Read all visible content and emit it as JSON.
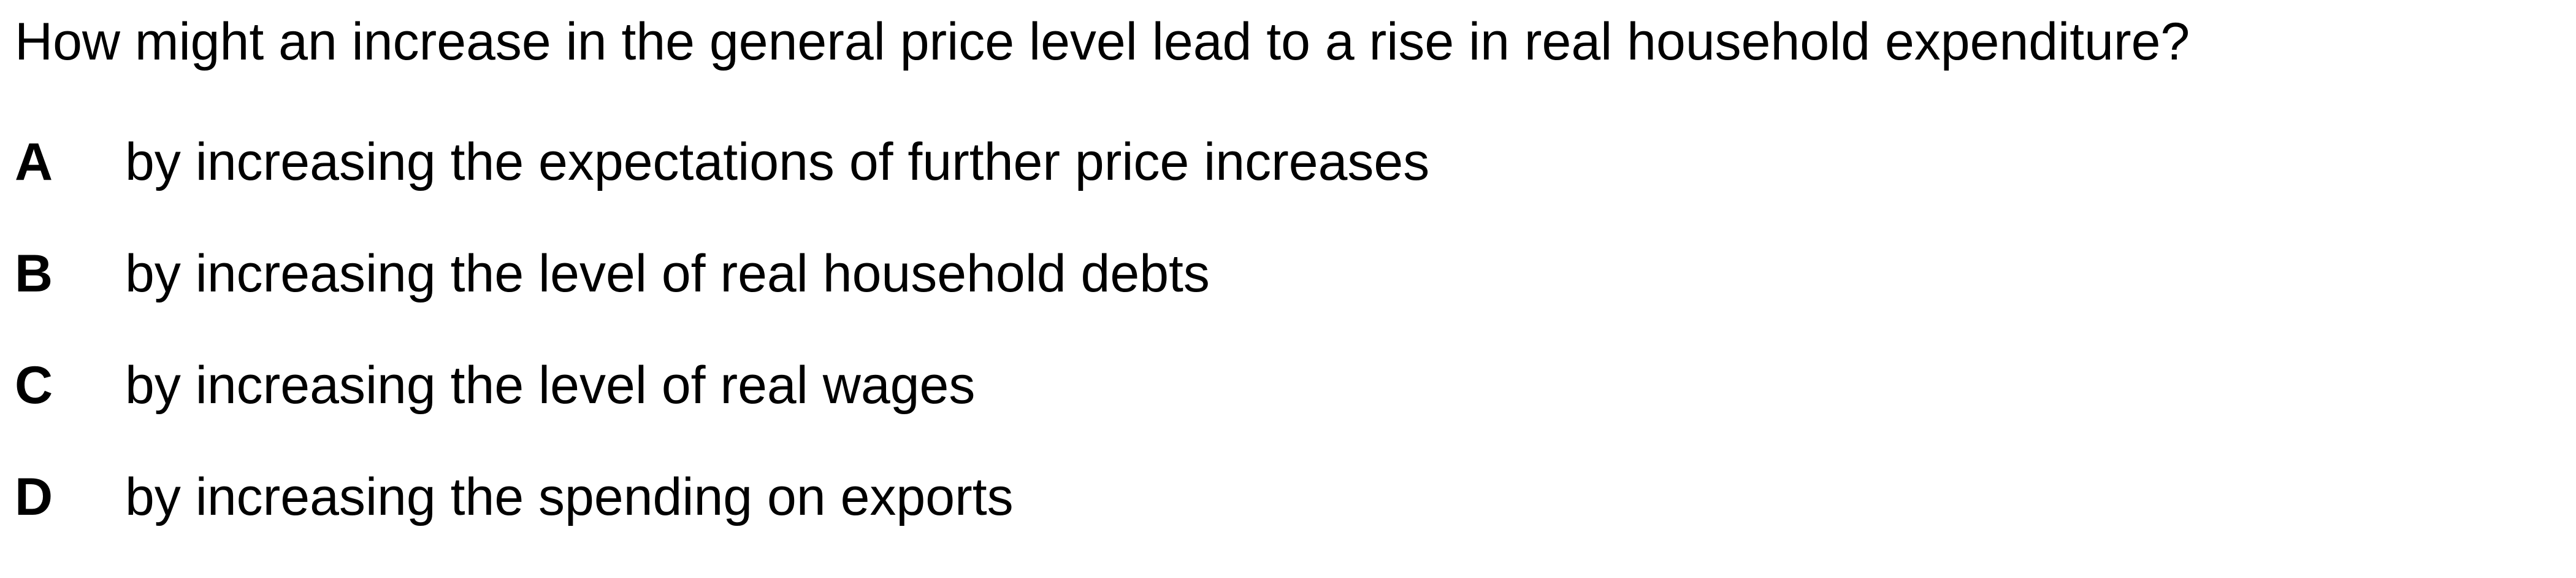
{
  "question": {
    "text": "How might an increase in the general price level lead to a rise in real household expenditure?"
  },
  "options": [
    {
      "letter": "A",
      "text": "by increasing the expectations of further price increases"
    },
    {
      "letter": "B",
      "text": "by increasing the level of real household debts"
    },
    {
      "letter": "C",
      "text": "by increasing the level of real wages"
    },
    {
      "letter": "D",
      "text": "by increasing the spending on exports"
    }
  ]
}
